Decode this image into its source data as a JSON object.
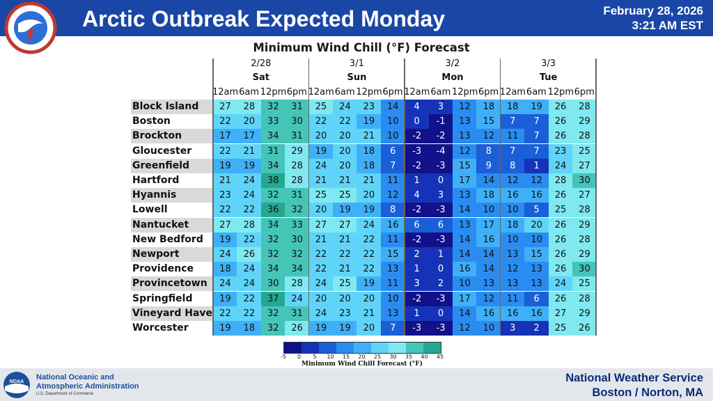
{
  "header": {
    "title": "Arctic Outbreak Expected Monday",
    "date": "February 28, 2026",
    "time": "3:21 AM EST",
    "logo_text": "NATIONAL WEATHER SERVICE"
  },
  "chart": {
    "subtitle": "Minimum Wind Chill (°F) Forecast",
    "days": [
      {
        "date": "2/28",
        "day": "Sat"
      },
      {
        "date": "3/1",
        "day": "Sun"
      },
      {
        "date": "3/2",
        "day": "Mon"
      },
      {
        "date": "3/3",
        "day": "Tue"
      }
    ],
    "times": [
      "12am",
      "6am",
      "12pm",
      "6pm"
    ],
    "rows": [
      {
        "city": "Block Island",
        "values": [
          27,
          28,
          32,
          31,
          25,
          24,
          23,
          14,
          4,
          3,
          12,
          18,
          18,
          19,
          26,
          28
        ]
      },
      {
        "city": "Boston",
        "values": [
          22,
          20,
          33,
          30,
          22,
          22,
          19,
          10,
          0,
          -1,
          13,
          15,
          7,
          7,
          26,
          29
        ]
      },
      {
        "city": "Brockton",
        "values": [
          17,
          17,
          34,
          31,
          20,
          20,
          21,
          10,
          -2,
          -2,
          13,
          12,
          11,
          7,
          26,
          28
        ]
      },
      {
        "city": "Gloucester",
        "values": [
          22,
          21,
          31,
          29,
          19,
          20,
          18,
          6,
          -3,
          -4,
          12,
          8,
          7,
          7,
          23,
          25
        ]
      },
      {
        "city": "Greenfield",
        "values": [
          19,
          19,
          34,
          28,
          24,
          20,
          18,
          7,
          -2,
          -3,
          15,
          9,
          8,
          1,
          24,
          27
        ]
      },
      {
        "city": "Hartford",
        "values": [
          21,
          24,
          38,
          28,
          21,
          21,
          21,
          11,
          1,
          0,
          17,
          14,
          12,
          12,
          28,
          30
        ]
      },
      {
        "city": "Hyannis",
        "values": [
          23,
          24,
          32,
          31,
          25,
          25,
          20,
          12,
          4,
          3,
          13,
          18,
          16,
          16,
          26,
          27
        ]
      },
      {
        "city": "Lowell",
        "values": [
          22,
          22,
          36,
          32,
          20,
          19,
          19,
          8,
          -2,
          -3,
          14,
          10,
          10,
          5,
          25,
          28
        ]
      },
      {
        "city": "Nantucket",
        "values": [
          27,
          28,
          34,
          33,
          27,
          27,
          24,
          16,
          6,
          6,
          13,
          17,
          18,
          20,
          26,
          29
        ]
      },
      {
        "city": "New Bedford",
        "values": [
          19,
          22,
          32,
          30,
          21,
          21,
          22,
          11,
          -2,
          -3,
          14,
          16,
          10,
          10,
          26,
          28
        ]
      },
      {
        "city": "Newport",
        "values": [
          24,
          26,
          32,
          32,
          22,
          22,
          22,
          15,
          2,
          1,
          14,
          14,
          13,
          15,
          26,
          29
        ]
      },
      {
        "city": "Providence",
        "values": [
          18,
          24,
          34,
          34,
          22,
          21,
          22,
          13,
          1,
          0,
          16,
          14,
          12,
          13,
          26,
          30
        ]
      },
      {
        "city": "Provincetown",
        "values": [
          24,
          24,
          30,
          28,
          24,
          25,
          19,
          11,
          3,
          2,
          10,
          13,
          13,
          13,
          24,
          25
        ]
      },
      {
        "city": "Springfield",
        "values": [
          19,
          22,
          37,
          24,
          20,
          20,
          20,
          10,
          -2,
          -3,
          17,
          12,
          11,
          6,
          26,
          28
        ]
      },
      {
        "city": "Vineyard Haven",
        "values": [
          22,
          22,
          32,
          31,
          24,
          23,
          21,
          13,
          1,
          0,
          14,
          16,
          16,
          16,
          27,
          29
        ]
      },
      {
        "city": "Worcester",
        "values": [
          19,
          18,
          32,
          26,
          19,
          19,
          20,
          7,
          -3,
          -3,
          12,
          10,
          3,
          2,
          25,
          26
        ]
      }
    ]
  },
  "legend": {
    "title": "Minimum Wind Chill Forecast (°F)",
    "ticks": [
      "-5",
      "0",
      "5",
      "10",
      "15",
      "20",
      "25",
      "30",
      "35",
      "40",
      "45"
    ],
    "colors": [
      "#11118a",
      "#1533b8",
      "#1b5fd8",
      "#2a8cf0",
      "#3fb0f7",
      "#60d4f8",
      "#7fe8f0",
      "#45c4b8",
      "#26a890"
    ]
  },
  "footer": {
    "noaa_line1": "National Oceanic and",
    "noaa_line2": "Atmospheric Administration",
    "noaa_dept": "U.S. Department of Commerce",
    "office_line1": "National Weather Service",
    "office_line2": "Boston / Norton, MA",
    "noaa_logo_text": "NOAA"
  }
}
